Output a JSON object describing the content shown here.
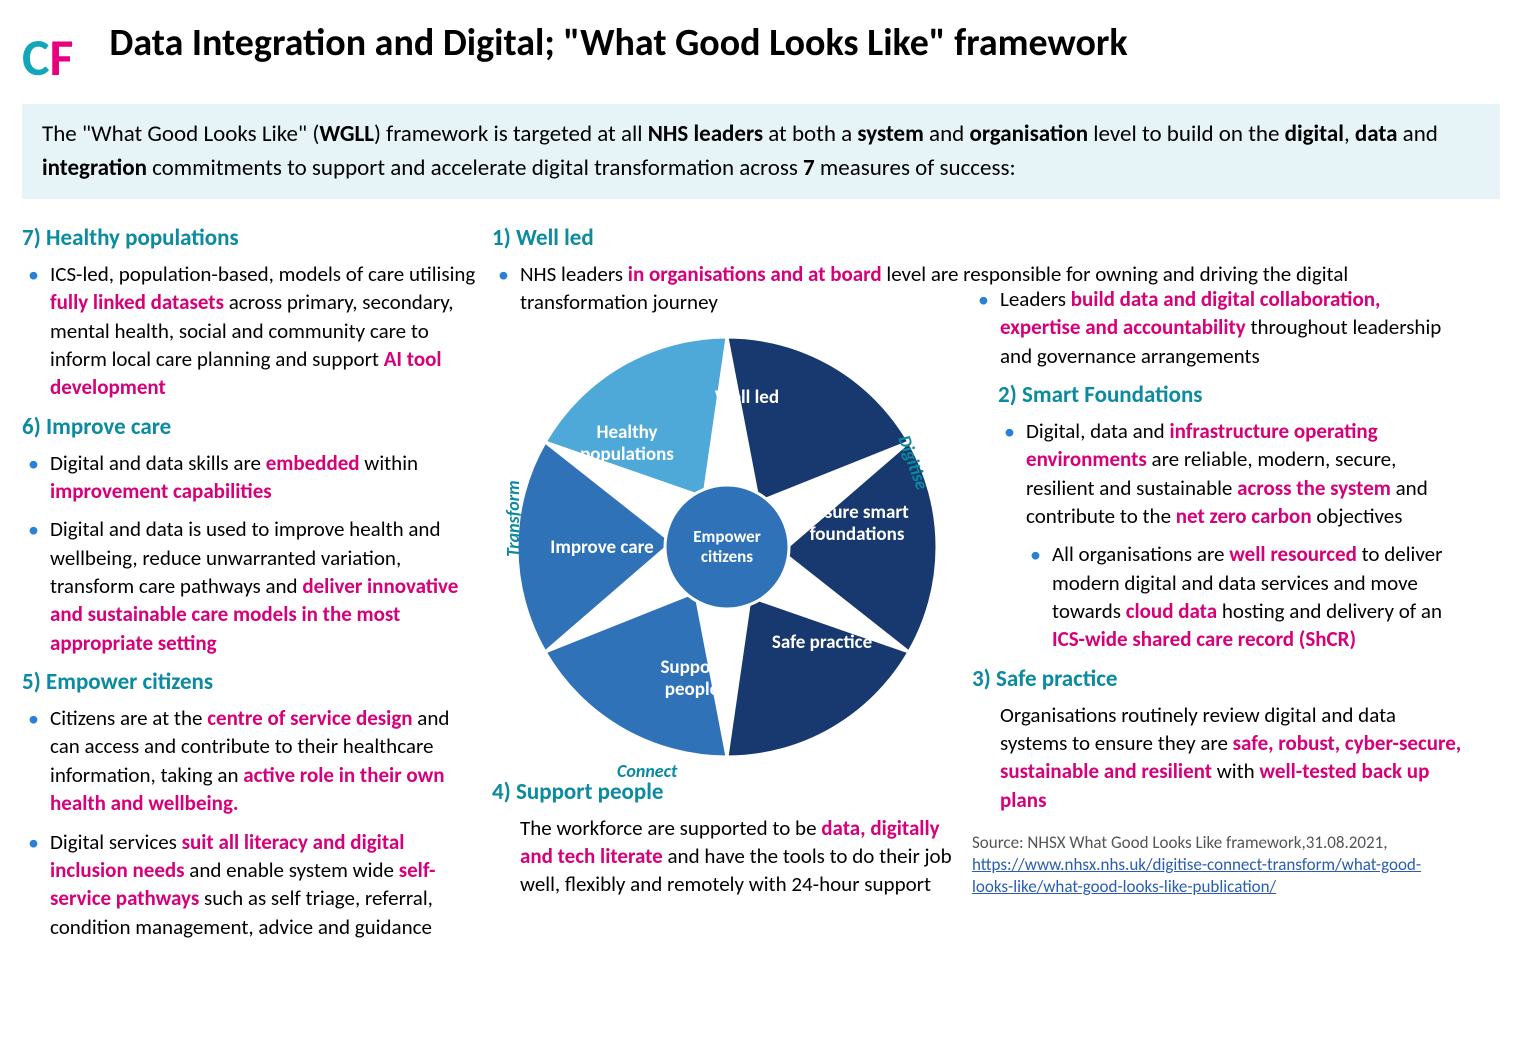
{
  "title": "Data Integration and Digital; \"What Good Looks Like\" framework",
  "intro": {
    "pre": "The \"What Good Looks Like\" (",
    "wgll": "WGLL",
    "mid1": ") framework is targeted at all ",
    "b1": "NHS leaders",
    "mid2": " at both a ",
    "b2": "system",
    "mid3": " and ",
    "b3": "organisation",
    "mid4": " level to build on the ",
    "b4": "digital",
    "mid5": ", ",
    "b5": "data",
    "mid6": " and ",
    "b6": "integration",
    "mid7": " commitments to support and accelerate digital transformation across ",
    "b7": "7",
    "mid8": " measures of success:"
  },
  "s7": {
    "title": "7) Healthy populations",
    "b1a": "ICS-led, population-based, models of care utilising ",
    "b1e1": "fully linked datasets",
    "b1b": " across primary, secondary, mental health, social and community care to inform local care planning and support ",
    "b1e2": "AI tool development"
  },
  "s6": {
    "title": "6) Improve care",
    "b1a": "Digital and data skills are ",
    "b1e1": "embedded",
    "b1b": " within ",
    "b1e2": "improvement capabilities",
    "b2a": "Digital and data is used to improve health and wellbeing, reduce unwarranted variation, transform care pathways and ",
    "b2e1": "deliver innovative and sustainable care models in the most appropriate setting"
  },
  "s5": {
    "title": "5) Empower citizens",
    "b1a": "Citizens are at the ",
    "b1e1": "centre of service design",
    "b1b": " and can access and contribute to their healthcare information, taking an ",
    "b1e2": "active role in their own health and wellbeing.",
    "b2a": "Digital services ",
    "b2e1": "suit all literacy and digital inclusion needs",
    "b2b": " and enable system wide ",
    "b2e2": "self-service pathways",
    "b2c": " such as self triage, referral, condition management, advice and guidance"
  },
  "s1": {
    "title": "1) Well led",
    "b1a": "NHS leaders ",
    "b1e1": "in organisations and at board",
    "b1b": " level are responsible for owning and driving the digital transformation journey",
    "b2a": "Leaders ",
    "b2e1": "build data and digital collaboration, expertise and accountability",
    "b2b": " throughout leadership and governance arrangements"
  },
  "s2": {
    "title": "2) Smart Foundations",
    "b1a": "Digital, data and ",
    "b1e1": "infrastructure operating environments",
    "b1b": " are  reliable, modern, secure, resilient and sustainable ",
    "b1e2": "across the system",
    "b1c": " and contribute to the ",
    "b1e3": "net zero carbon",
    "b1d": " objectives",
    "b2a": "All organisations are ",
    "b2e1": "well resourced",
    "b2b": " to deliver modern digital and data services and move towards ",
    "b2e2": "cloud data",
    "b2c": " hosting and delivery of an ",
    "b2e3": "ICS-wide shared care record (ShCR)"
  },
  "s3": {
    "title": "3) Safe practice",
    "body_a": "Organisations routinely review digital and data systems to ensure they are ",
    "body_e1": "safe, robust, cyber-secure, sustainable and resilient",
    "body_b": " with ",
    "body_e2": "well-tested back up plans"
  },
  "s4": {
    "title": "4) Support people",
    "body_a": "The workforce are supported to be ",
    "body_e1": "data, digitally and tech literate",
    "body_b": " and have the tools to do their job well, flexibly and remotely with 24-hour support"
  },
  "pie": {
    "colors": {
      "dark": "#17396f",
      "mid": "#2f72b8",
      "light": "#4fa9d8"
    },
    "segments": {
      "well_led": "Well led",
      "smart": "Ensure smart foundations",
      "safe": "Safe practice",
      "support": "Support people",
      "empower": "Empower citizens",
      "improve": "Improve care",
      "healthy": "Healthy populations"
    },
    "side_labels": {
      "transform": "Transform",
      "digitise": "Digitise",
      "connect": "Connect"
    }
  },
  "source": {
    "prefix": "Source: NHSX What Good Looks Like framework,31.08.2021, ",
    "url": "https://www.nhsx.nhs.uk/digitise-connect-transform/what-good-looks-like/what-good-looks-like-publication/"
  },
  "colors": {
    "heading": "#0b8aa0",
    "emphasis": "#d6007a",
    "intro_bg": "#e6f4f7",
    "bullet": "#2b7fd6"
  }
}
